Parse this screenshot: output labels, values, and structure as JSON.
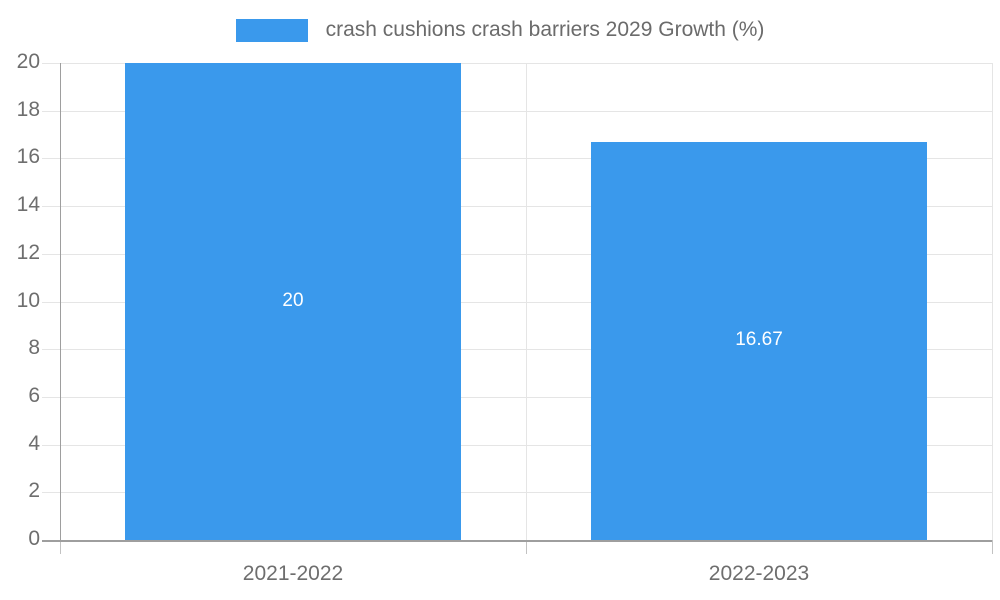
{
  "chart_data": {
    "type": "bar",
    "title": "crash cushions crash barriers 2029 Growth (%)",
    "categories": [
      "2021-2022",
      "2022-2023"
    ],
    "values": [
      20,
      16.67
    ],
    "value_labels": [
      "20",
      "16.67"
    ],
    "yticks": [
      0,
      2,
      4,
      6,
      8,
      10,
      12,
      14,
      16,
      18,
      20
    ],
    "ylim": [
      0,
      20
    ],
    "xlabel": "",
    "ylabel": "",
    "legend_position": "top-center",
    "grid": true,
    "colors": {
      "bar": "#3A99EC",
      "value_label": "#ffffff",
      "axis_text": "#6e6e6e",
      "legend_text": "#6b6b6b",
      "gridline": "#e5e5e5",
      "axis_line": "#9e9e9e",
      "background": "#ffffff"
    }
  }
}
